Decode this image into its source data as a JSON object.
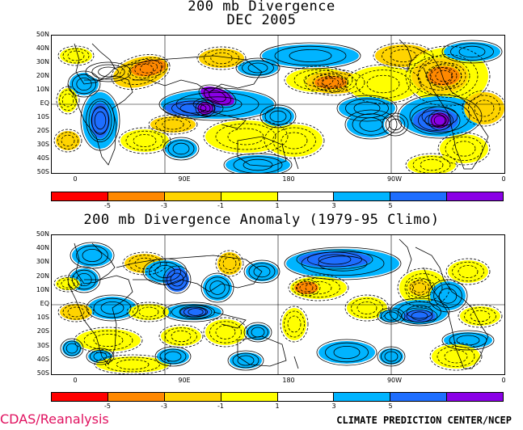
{
  "panel1": {
    "title_line1": "200 mb Divergence",
    "title_line2": "DEC 2005"
  },
  "panel2": {
    "title": "200 mb Divergence Anomaly (1979-95 Climo)"
  },
  "lat_labels": [
    "50N",
    "40N",
    "30N",
    "20N",
    "10N",
    "EQ",
    "10S",
    "20S",
    "30S",
    "40S",
    "50S"
  ],
  "lon_labels": [
    "0",
    "90E",
    "180",
    "90W",
    "0"
  ],
  "colorbar": {
    "colors": [
      "#ff0000",
      "#ff8800",
      "#ffd400",
      "#ffff00",
      "#ffffff",
      "#00b4ff",
      "#1e6eff",
      "#8a00e6"
    ],
    "tick_labels": [
      "-5",
      "-3",
      "-1",
      "1",
      "3",
      "5"
    ]
  },
  "footer": {
    "left": "CDAS/Reanalysis",
    "right": "CLIMATE PREDICTION CENTER/NCEP"
  }
}
